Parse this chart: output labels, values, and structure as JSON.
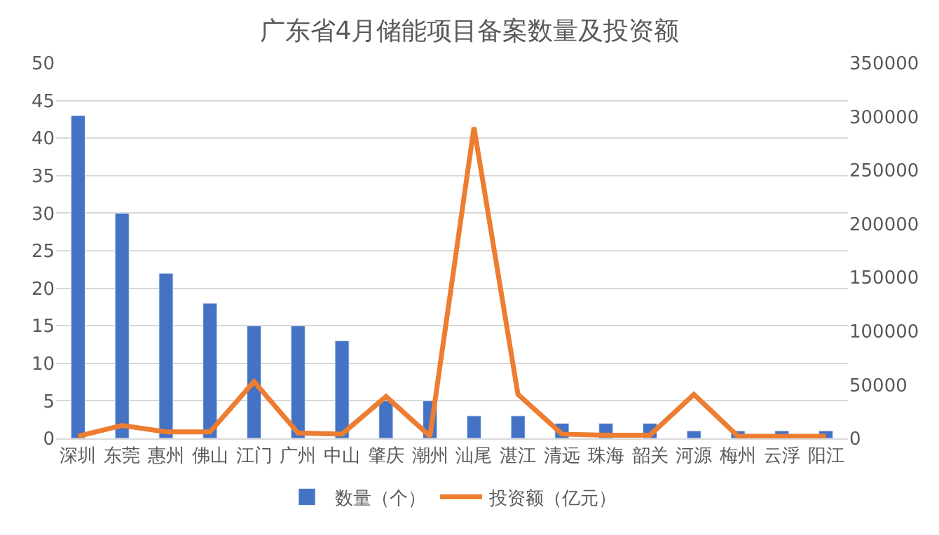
{
  "chart_data": {
    "type": "bar",
    "title": "广东省4月储能项目备案数量及投资额",
    "categories": [
      "深圳",
      "东莞",
      "惠州",
      "佛山",
      "江门",
      "广州",
      "中山",
      "肇庆",
      "潮州",
      "汕尾",
      "湛江",
      "清远",
      "珠海",
      "韶关",
      "河源",
      "梅州",
      "云浮",
      "阳江"
    ],
    "series": [
      {
        "name": "数量（个）",
        "color": "#4472c4",
        "values": [
          43,
          30,
          22,
          18,
          15,
          15,
          13,
          5,
          5,
          3,
          3,
          2,
          2,
          2,
          1,
          1,
          1,
          1
        ]
      },
      {
        "name": "投资额（亿元）",
        "color": "#ed7d31",
        "type": "line",
        "axis": "y2",
        "values": [
          2000,
          12000,
          6000,
          6000,
          53000,
          5000,
          4000,
          39000,
          2000,
          290000,
          41000,
          4000,
          3000,
          3000,
          41000,
          2000,
          2000,
          2000
        ]
      }
    ],
    "ylim": [
      0,
      50
    ],
    "yticks": [
      0,
      5,
      10,
      15,
      20,
      25,
      30,
      35,
      40,
      45,
      50
    ],
    "y2lim": [
      0,
      350000
    ],
    "y2ticks": [
      0,
      50000,
      100000,
      150000,
      200000,
      250000,
      300000,
      350000
    ],
    "grid": "y",
    "legend": "bottom",
    "marker": "none"
  }
}
